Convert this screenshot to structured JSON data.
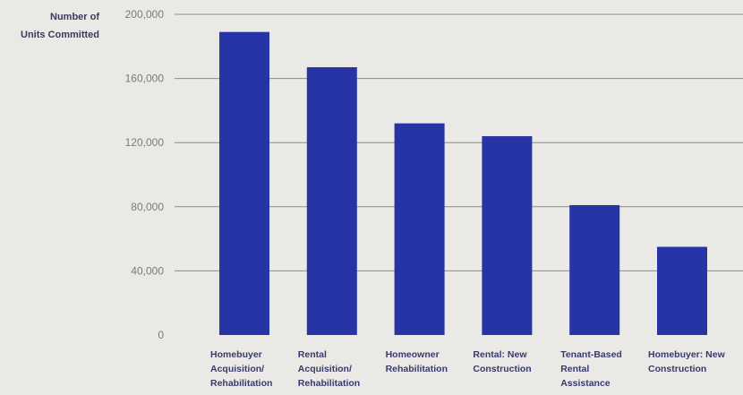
{
  "chart_data": {
    "type": "bar",
    "ylabel": [
      "Number of",
      "Units Committed"
    ],
    "ylim": [
      0,
      200000
    ],
    "yticks": [
      0,
      40000,
      80000,
      120000,
      160000,
      200000
    ],
    "ytick_labels": [
      "0",
      "40,000",
      "80,000",
      "120,000",
      "160,000",
      "200,000"
    ],
    "categories": [
      [
        "Homebuyer",
        "Acquisition/",
        "Rehabilitation"
      ],
      [
        "Rental",
        "Acquisition/",
        "Rehabilitation"
      ],
      [
        "Homeowner",
        "Rehabilitation"
      ],
      [
        "Rental: New",
        "Construction"
      ],
      [
        "Tenant-Based",
        "Rental",
        "Assistance"
      ],
      [
        "Homebuyer: New",
        "Construction"
      ]
    ],
    "values": [
      189000,
      167000,
      132000,
      124000,
      81000,
      55000
    ],
    "bar_color": "#2634a6",
    "gridline_color": "#8a8a8a",
    "grid": true
  }
}
